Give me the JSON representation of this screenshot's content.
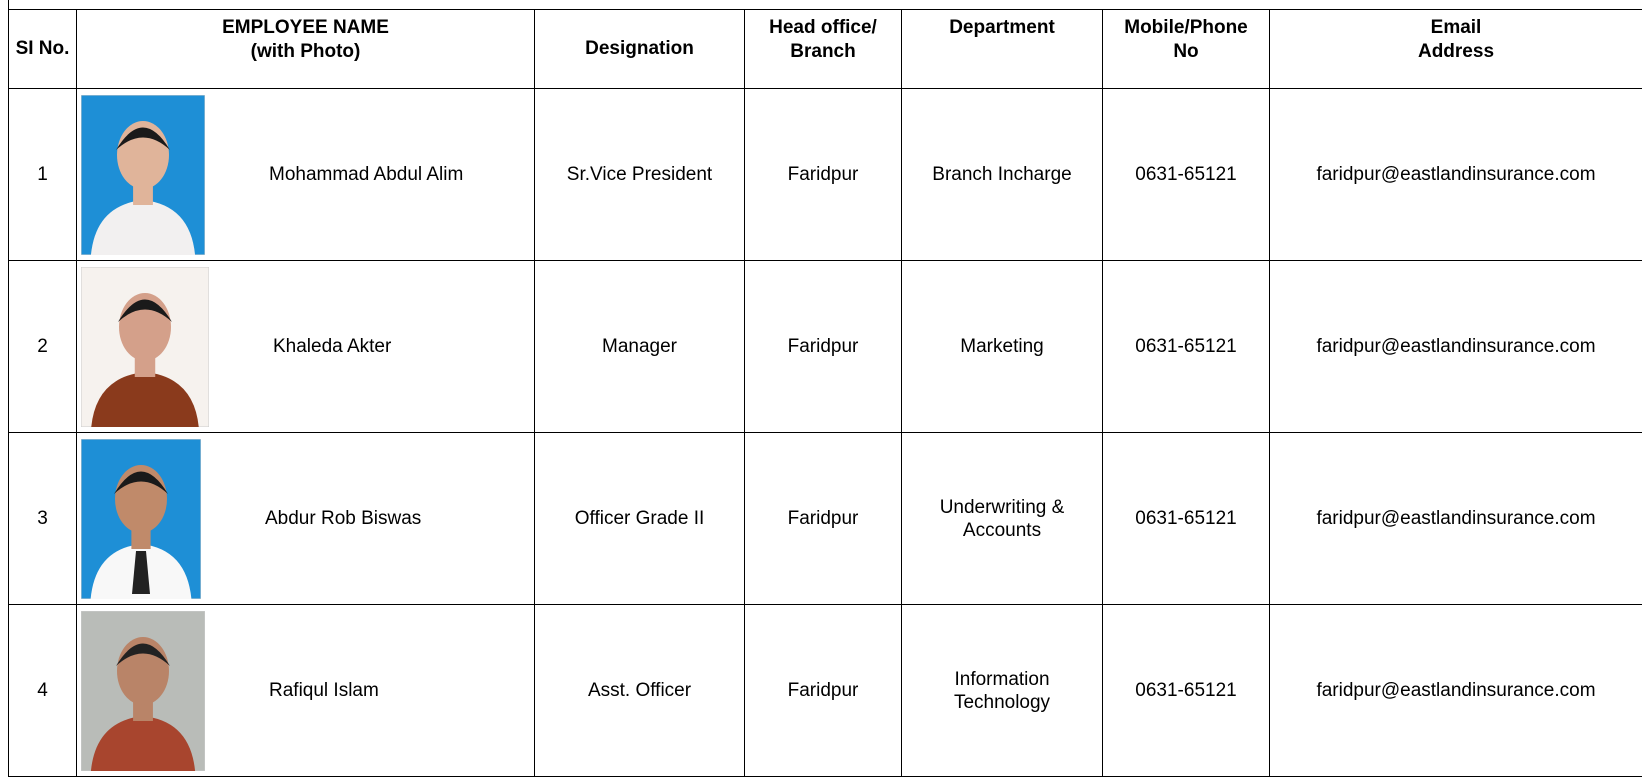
{
  "table": {
    "columns": [
      [
        "SI No."
      ],
      [
        "EMPLOYEE NAME",
        "(with Photo)"
      ],
      [
        "Designation"
      ],
      [
        "Head office/",
        "Branch"
      ],
      [
        "Department"
      ],
      [
        "Mobile/Phone",
        "No"
      ],
      [
        "Email",
        "Address"
      ]
    ],
    "rows": [
      [
        "1",
        "Mohammad Abdul Alim",
        "Sr.Vice President",
        "Faridpur",
        "Branch Incharge",
        "0631-65121",
        "faridpur@eastlandinsurance.com"
      ],
      [
        "2",
        "Khaleda Akter",
        "Manager",
        "Faridpur",
        "Marketing",
        "0631-65121",
        "faridpur@eastlandinsurance.com"
      ],
      [
        "3",
        "Abdur Rob Biswas",
        "Officer Grade II",
        "Faridpur",
        "Underwriting & Accounts",
        "0631-65121",
        "faridpur@eastlandinsurance.com"
      ],
      [
        "4",
        "Rafiqul Islam",
        "Asst. Officer",
        "Faridpur",
        "Information Technology",
        "0631-65121",
        "faridpur@eastlandinsurance.com"
      ]
    ]
  }
}
